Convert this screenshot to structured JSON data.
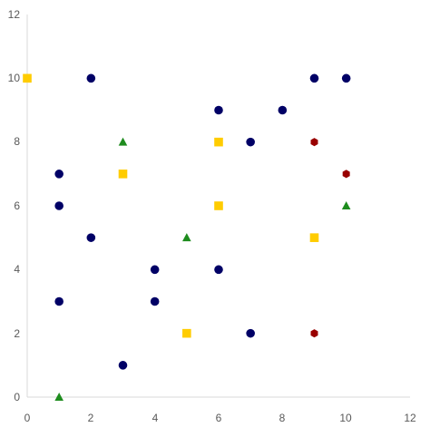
{
  "chart_data": {
    "type": "scatter",
    "xlim": [
      0,
      12
    ],
    "ylim": [
      0,
      12
    ],
    "x_ticks": [
      "0",
      "2",
      "4",
      "6",
      "8",
      "10",
      "12"
    ],
    "y_ticks": [
      "0",
      "2",
      "4",
      "6",
      "8",
      "10",
      "12"
    ],
    "grid": false,
    "legend": "none",
    "series": [
      {
        "marker": "circle",
        "color": "#000066",
        "points": [
          [
            2,
            10
          ],
          [
            9,
            10
          ],
          [
            10,
            10
          ],
          [
            6,
            9
          ],
          [
            8,
            9
          ],
          [
            7,
            8
          ],
          [
            1,
            7
          ],
          [
            1,
            6
          ],
          [
            2,
            5
          ],
          [
            4,
            4
          ],
          [
            6,
            4
          ],
          [
            1,
            3
          ],
          [
            4,
            3
          ],
          [
            7,
            2
          ],
          [
            3,
            1
          ]
        ]
      },
      {
        "marker": "square",
        "color": "#FFCC00",
        "points": [
          [
            0,
            10
          ],
          [
            6,
            8
          ],
          [
            3,
            7
          ],
          [
            6,
            6
          ],
          [
            9,
            5
          ],
          [
            5,
            2
          ]
        ]
      },
      {
        "marker": "triangle",
        "color": "#1E8C1E",
        "points": [
          [
            3,
            8
          ],
          [
            10,
            6
          ],
          [
            5,
            5
          ],
          [
            1,
            0
          ]
        ]
      },
      {
        "marker": "hexagon",
        "color": "#990000",
        "points": [
          [
            9,
            8
          ],
          [
            10,
            7
          ],
          [
            9,
            2
          ]
        ]
      }
    ]
  }
}
